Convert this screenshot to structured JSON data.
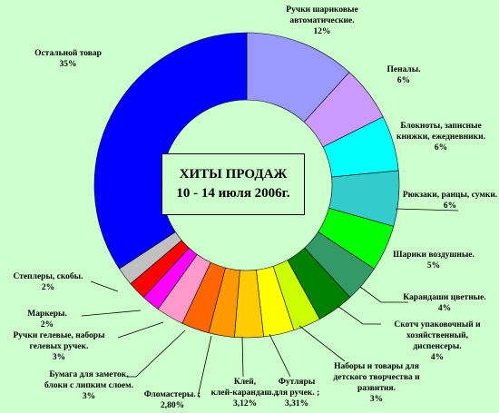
{
  "chart_data": {
    "type": "pie",
    "title": [
      "ХИТЫ ПРОДАЖ",
      "10 - 14 июля 2006г."
    ],
    "slices": [
      {
        "label": [
          "Ручки шариковые",
          "автоматические."
        ],
        "value_label": "12%",
        "value": 12,
        "color": "#9999ff"
      },
      {
        "label": [
          "Пеналы."
        ],
        "value_label": "6%",
        "value": 6,
        "color": "#cc99ff"
      },
      {
        "label": [
          "Блокноты, записные",
          "книжки, ежедневники."
        ],
        "value_label": "6%",
        "value": 6,
        "color": "#00ffff"
      },
      {
        "label": [
          "Рюкзаки, ранцы, сумки."
        ],
        "value_label": "6%",
        "value": 6,
        "color": "#33cccc"
      },
      {
        "label": [
          "Шарики воздушные."
        ],
        "value_label": "5%",
        "value": 5,
        "color": "#00ff00"
      },
      {
        "label": [
          "Карандаши цветные."
        ],
        "value_label": "4%",
        "value": 4,
        "color": "#339966"
      },
      {
        "label": [
          "Скотч упаковочный и",
          "хозяйственный,",
          "диспенсеры."
        ],
        "value_label": "4%",
        "value": 4,
        "color": "#008000"
      },
      {
        "label": [
          "Наборы и товары для",
          "детского творчества и",
          "развития."
        ],
        "value_label": "3%",
        "value": 3,
        "color": "#ccff00"
      },
      {
        "label": [
          "Футляры",
          "для ручек. ;"
        ],
        "value_label": "3,31%",
        "value": 3.31,
        "color": "#ffff00"
      },
      {
        "label": [
          "Клей,",
          "клей-карандаш. ;"
        ],
        "value_label": "3,12%",
        "value": 3.12,
        "color": "#ffcc00"
      },
      {
        "label": [
          "Фломастеры. ;"
        ],
        "value_label": "2,80%",
        "value": 2.8,
        "color": "#ff9900"
      },
      {
        "label": [
          "Бумага для заметок,",
          "блоки с липким слоем."
        ],
        "value_label": "3%",
        "value": 3,
        "color": "#ff6600"
      },
      {
        "label": [
          "Ручки гелевые, наборы",
          "гелевых ручек."
        ],
        "value_label": "3%",
        "value": 3,
        "color": "#ff99cc"
      },
      {
        "label": [
          "Маркеры."
        ],
        "value_label": "2%",
        "value": 2,
        "color": "#ff00ff"
      },
      {
        "label": [
          "Степлеры, скобы."
        ],
        "value_label": "2%",
        "value": 2,
        "color": "#ff0000"
      },
      {
        "label": [],
        "value_label": "",
        "value": 2,
        "color": "#c0c0c0"
      },
      {
        "label": [
          "Остальной товар"
        ],
        "value_label": "35%",
        "value": 35,
        "color": "#0000ff"
      }
    ],
    "start_angle": "top",
    "direction": "clockwise",
    "donut": true
  }
}
